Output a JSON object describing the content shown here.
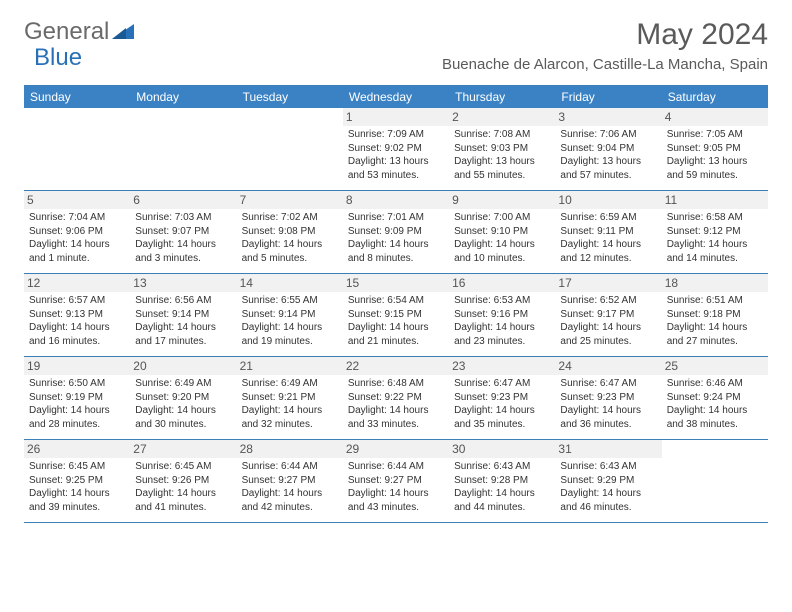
{
  "logo": {
    "text1": "General",
    "text2": "Blue"
  },
  "title": "May 2024",
  "location": "Buenache de Alarcon, Castille-La Mancha, Spain",
  "colors": {
    "header_bg": "#3b82c4",
    "header_text": "#ffffff",
    "border": "#3b7fb8",
    "daynum_bg": "#f1f1f1",
    "text": "#333333",
    "logo_gray": "#6a6a6a",
    "logo_blue": "#2871b8"
  },
  "weekdays": [
    "Sunday",
    "Monday",
    "Tuesday",
    "Wednesday",
    "Thursday",
    "Friday",
    "Saturday"
  ],
  "weeks": [
    [
      {
        "empty": true
      },
      {
        "empty": true
      },
      {
        "empty": true
      },
      {
        "num": "1",
        "sunrise": "Sunrise: 7:09 AM",
        "sunset": "Sunset: 9:02 PM",
        "daylight": "Daylight: 13 hours and 53 minutes."
      },
      {
        "num": "2",
        "sunrise": "Sunrise: 7:08 AM",
        "sunset": "Sunset: 9:03 PM",
        "daylight": "Daylight: 13 hours and 55 minutes."
      },
      {
        "num": "3",
        "sunrise": "Sunrise: 7:06 AM",
        "sunset": "Sunset: 9:04 PM",
        "daylight": "Daylight: 13 hours and 57 minutes."
      },
      {
        "num": "4",
        "sunrise": "Sunrise: 7:05 AM",
        "sunset": "Sunset: 9:05 PM",
        "daylight": "Daylight: 13 hours and 59 minutes."
      }
    ],
    [
      {
        "num": "5",
        "sunrise": "Sunrise: 7:04 AM",
        "sunset": "Sunset: 9:06 PM",
        "daylight": "Daylight: 14 hours and 1 minute."
      },
      {
        "num": "6",
        "sunrise": "Sunrise: 7:03 AM",
        "sunset": "Sunset: 9:07 PM",
        "daylight": "Daylight: 14 hours and 3 minutes."
      },
      {
        "num": "7",
        "sunrise": "Sunrise: 7:02 AM",
        "sunset": "Sunset: 9:08 PM",
        "daylight": "Daylight: 14 hours and 5 minutes."
      },
      {
        "num": "8",
        "sunrise": "Sunrise: 7:01 AM",
        "sunset": "Sunset: 9:09 PM",
        "daylight": "Daylight: 14 hours and 8 minutes."
      },
      {
        "num": "9",
        "sunrise": "Sunrise: 7:00 AM",
        "sunset": "Sunset: 9:10 PM",
        "daylight": "Daylight: 14 hours and 10 minutes."
      },
      {
        "num": "10",
        "sunrise": "Sunrise: 6:59 AM",
        "sunset": "Sunset: 9:11 PM",
        "daylight": "Daylight: 14 hours and 12 minutes."
      },
      {
        "num": "11",
        "sunrise": "Sunrise: 6:58 AM",
        "sunset": "Sunset: 9:12 PM",
        "daylight": "Daylight: 14 hours and 14 minutes."
      }
    ],
    [
      {
        "num": "12",
        "sunrise": "Sunrise: 6:57 AM",
        "sunset": "Sunset: 9:13 PM",
        "daylight": "Daylight: 14 hours and 16 minutes."
      },
      {
        "num": "13",
        "sunrise": "Sunrise: 6:56 AM",
        "sunset": "Sunset: 9:14 PM",
        "daylight": "Daylight: 14 hours and 17 minutes."
      },
      {
        "num": "14",
        "sunrise": "Sunrise: 6:55 AM",
        "sunset": "Sunset: 9:14 PM",
        "daylight": "Daylight: 14 hours and 19 minutes."
      },
      {
        "num": "15",
        "sunrise": "Sunrise: 6:54 AM",
        "sunset": "Sunset: 9:15 PM",
        "daylight": "Daylight: 14 hours and 21 minutes."
      },
      {
        "num": "16",
        "sunrise": "Sunrise: 6:53 AM",
        "sunset": "Sunset: 9:16 PM",
        "daylight": "Daylight: 14 hours and 23 minutes."
      },
      {
        "num": "17",
        "sunrise": "Sunrise: 6:52 AM",
        "sunset": "Sunset: 9:17 PM",
        "daylight": "Daylight: 14 hours and 25 minutes."
      },
      {
        "num": "18",
        "sunrise": "Sunrise: 6:51 AM",
        "sunset": "Sunset: 9:18 PM",
        "daylight": "Daylight: 14 hours and 27 minutes."
      }
    ],
    [
      {
        "num": "19",
        "sunrise": "Sunrise: 6:50 AM",
        "sunset": "Sunset: 9:19 PM",
        "daylight": "Daylight: 14 hours and 28 minutes."
      },
      {
        "num": "20",
        "sunrise": "Sunrise: 6:49 AM",
        "sunset": "Sunset: 9:20 PM",
        "daylight": "Daylight: 14 hours and 30 minutes."
      },
      {
        "num": "21",
        "sunrise": "Sunrise: 6:49 AM",
        "sunset": "Sunset: 9:21 PM",
        "daylight": "Daylight: 14 hours and 32 minutes."
      },
      {
        "num": "22",
        "sunrise": "Sunrise: 6:48 AM",
        "sunset": "Sunset: 9:22 PM",
        "daylight": "Daylight: 14 hours and 33 minutes."
      },
      {
        "num": "23",
        "sunrise": "Sunrise: 6:47 AM",
        "sunset": "Sunset: 9:23 PM",
        "daylight": "Daylight: 14 hours and 35 minutes."
      },
      {
        "num": "24",
        "sunrise": "Sunrise: 6:47 AM",
        "sunset": "Sunset: 9:23 PM",
        "daylight": "Daylight: 14 hours and 36 minutes."
      },
      {
        "num": "25",
        "sunrise": "Sunrise: 6:46 AM",
        "sunset": "Sunset: 9:24 PM",
        "daylight": "Daylight: 14 hours and 38 minutes."
      }
    ],
    [
      {
        "num": "26",
        "sunrise": "Sunrise: 6:45 AM",
        "sunset": "Sunset: 9:25 PM",
        "daylight": "Daylight: 14 hours and 39 minutes."
      },
      {
        "num": "27",
        "sunrise": "Sunrise: 6:45 AM",
        "sunset": "Sunset: 9:26 PM",
        "daylight": "Daylight: 14 hours and 41 minutes."
      },
      {
        "num": "28",
        "sunrise": "Sunrise: 6:44 AM",
        "sunset": "Sunset: 9:27 PM",
        "daylight": "Daylight: 14 hours and 42 minutes."
      },
      {
        "num": "29",
        "sunrise": "Sunrise: 6:44 AM",
        "sunset": "Sunset: 9:27 PM",
        "daylight": "Daylight: 14 hours and 43 minutes."
      },
      {
        "num": "30",
        "sunrise": "Sunrise: 6:43 AM",
        "sunset": "Sunset: 9:28 PM",
        "daylight": "Daylight: 14 hours and 44 minutes."
      },
      {
        "num": "31",
        "sunrise": "Sunrise: 6:43 AM",
        "sunset": "Sunset: 9:29 PM",
        "daylight": "Daylight: 14 hours and 46 minutes."
      },
      {
        "empty": true
      }
    ]
  ]
}
